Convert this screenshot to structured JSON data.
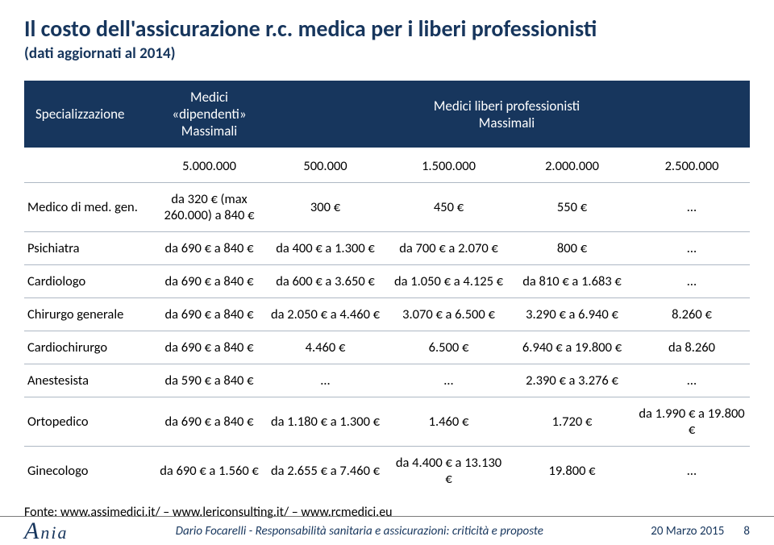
{
  "title": "Il costo dell'assicurazione r.c. medica per i liberi professionisti",
  "subtitle": "(dati aggiornati al 2014)",
  "header": {
    "col0": "Specializzazione",
    "col1_line1": "Medici",
    "col1_line2": "«dipendenti»",
    "col1_line3": "Massimali",
    "colspan_line1": "Medici liberi professionisti",
    "colspan_line2": "Massimali"
  },
  "rows": [
    {
      "spec": "",
      "c1": "5.000.000",
      "c2": "500.000",
      "c3": "1.500.000",
      "c4": "2.000.000",
      "c5": "2.500.000"
    },
    {
      "spec": "Medico di med. gen.",
      "c1": "da 320 € (max 260.000) a 840 €",
      "c2": "300 €",
      "c3": "450 €",
      "c4": "550 €",
      "c5": "…"
    },
    {
      "spec": "Psichiatra",
      "c1": "da 690 € a 840 €",
      "c2": "da 400 € a 1.300 €",
      "c3": "da 700 € a 2.070 €",
      "c4": "800 €",
      "c5": "…"
    },
    {
      "spec": "Cardiologo",
      "c1": "da 690 € a 840 €",
      "c2": "da 600 € a 3.650 €",
      "c3": "da 1.050 € a 4.125 €",
      "c4": "da 810 € a 1.683 €",
      "c5": "…"
    },
    {
      "spec": "Chirurgo generale",
      "c1": "da 690 € a 840 €",
      "c2": "da 2.050 € a 4.460 €",
      "c3": "3.070 € a 6.500 €",
      "c4": "3.290 € a 6.940 €",
      "c5": "8.260 €"
    },
    {
      "spec": "Cardiochirurgo",
      "c1": "da 690 € a 840 €",
      "c2": "4.460 €",
      "c3": "6.500 €",
      "c4": "6.940 € a 19.800 €",
      "c5": "da 8.260"
    },
    {
      "spec": "Anestesista",
      "c1": "da 590 € a 840 €",
      "c2": "…",
      "c3": "…",
      "c4": "2.390 € a 3.276 €",
      "c5": "…"
    },
    {
      "spec": "Ortopedico",
      "c1": "da 690 € a 840 €",
      "c2": "da 1.180 € a 1.300 €",
      "c3": "1.460 €",
      "c4": "1.720 €",
      "c5": "da 1.990 € a 19.800 €"
    },
    {
      "spec": "Ginecologo",
      "c1": "da 690 € a 1.560 €",
      "c2": "da 2.655 € a 7.460 €",
      "c3": "da 4.400 € a 13.130 €",
      "c4": "19.800 €",
      "c5": "…"
    }
  ],
  "source": "Fonte: www.assimedici.it/ – www.lericonsulting.it/ – www.rcmedici.eu",
  "footer": {
    "logo": "Ania",
    "mid": "Dario Focarelli - Responsabilità sanitaria e assicurazioni: criticità e proposte",
    "date": "20 Marzo 2015",
    "page": "8"
  },
  "colors": {
    "header_bg": "#17365d",
    "header_fg": "#ffffff",
    "text": "#000000",
    "rule": "#aeb8c4"
  }
}
